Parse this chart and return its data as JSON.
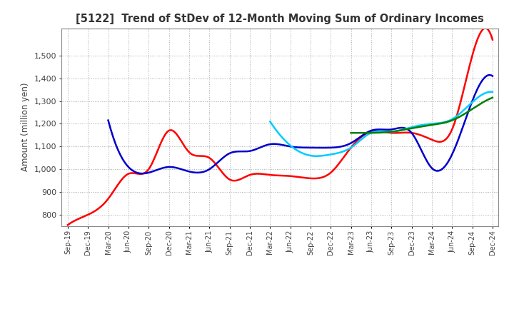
{
  "title": "[5122]  Trend of StDev of 12-Month Moving Sum of Ordinary Incomes",
  "ylabel": "Amount (million yen)",
  "ylim": [
    750,
    1620
  ],
  "yticks": [
    800,
    900,
    1000,
    1100,
    1200,
    1300,
    1400,
    1500
  ],
  "background_color": "#ffffff",
  "grid_color": "#aaaaaa",
  "series": {
    "3 Years": {
      "color": "#ff0000",
      "data": [
        [
          "Sep-19",
          755
        ],
        [
          "Dec-19",
          800
        ],
        [
          "Mar-20",
          870
        ],
        [
          "Jun-20",
          980
        ],
        [
          "Sep-20",
          1000
        ],
        [
          "Dec-20",
          1170
        ],
        [
          "Mar-21",
          1075
        ],
        [
          "Jun-21",
          1050
        ],
        [
          "Sep-21",
          955
        ],
        [
          "Dec-21",
          975
        ],
        [
          "Mar-22",
          975
        ],
        [
          "Jun-22",
          970
        ],
        [
          "Sep-22",
          960
        ],
        [
          "Dec-22",
          985
        ],
        [
          "Mar-23",
          1095
        ],
        [
          "Jun-23",
          1165
        ],
        [
          "Sep-23",
          1160
        ],
        [
          "Dec-23",
          1160
        ],
        [
          "Mar-24",
          1130
        ],
        [
          "Jun-24",
          1175
        ],
        [
          "Sep-24",
          1500
        ],
        [
          "Dec-24",
          1570
        ]
      ]
    },
    "5 Years": {
      "color": "#0000cc",
      "data": [
        [
          "Mar-20",
          1215
        ],
        [
          "Jun-20",
          1010
        ],
        [
          "Sep-20",
          985
        ],
        [
          "Dec-20",
          1010
        ],
        [
          "Mar-21",
          990
        ],
        [
          "Jun-21",
          1000
        ],
        [
          "Sep-21",
          1070
        ],
        [
          "Dec-21",
          1080
        ],
        [
          "Mar-22",
          1110
        ],
        [
          "Jun-22",
          1100
        ],
        [
          "Sep-22",
          1095
        ],
        [
          "Dec-22",
          1095
        ],
        [
          "Mar-23",
          1115
        ],
        [
          "Jun-23",
          1170
        ],
        [
          "Sep-23",
          1175
        ],
        [
          "Dec-23",
          1160
        ],
        [
          "Mar-24",
          1005
        ],
        [
          "Jun-24",
          1065
        ],
        [
          "Sep-24",
          1300
        ],
        [
          "Dec-24",
          1410
        ]
      ]
    },
    "7 Years": {
      "color": "#00ccff",
      "data": [
        [
          "Mar-22",
          1210
        ],
        [
          "Jun-22",
          1105
        ],
        [
          "Sep-22",
          1060
        ],
        [
          "Dec-22",
          1065
        ],
        [
          "Mar-23",
          1095
        ],
        [
          "Jun-23",
          1160
        ],
        [
          "Sep-23",
          1165
        ],
        [
          "Dec-23",
          1185
        ],
        [
          "Mar-24",
          1200
        ],
        [
          "Jun-24",
          1220
        ],
        [
          "Sep-24",
          1295
        ],
        [
          "Dec-24",
          1340
        ]
      ]
    },
    "10 Years": {
      "color": "#008000",
      "data": [
        [
          "Mar-23",
          1160
        ],
        [
          "Jun-23",
          1160
        ],
        [
          "Sep-23",
          1165
        ],
        [
          "Dec-23",
          1180
        ],
        [
          "Mar-24",
          1195
        ],
        [
          "Jun-24",
          1215
        ],
        [
          "Sep-24",
          1265
        ],
        [
          "Dec-24",
          1315
        ]
      ]
    }
  },
  "x_labels": [
    "Sep-19",
    "Dec-19",
    "Mar-20",
    "Jun-20",
    "Sep-20",
    "Dec-20",
    "Mar-21",
    "Jun-21",
    "Sep-21",
    "Dec-21",
    "Mar-22",
    "Jun-22",
    "Sep-22",
    "Dec-22",
    "Mar-23",
    "Jun-23",
    "Sep-23",
    "Dec-23",
    "Mar-24",
    "Jun-24",
    "Sep-24",
    "Dec-24"
  ]
}
